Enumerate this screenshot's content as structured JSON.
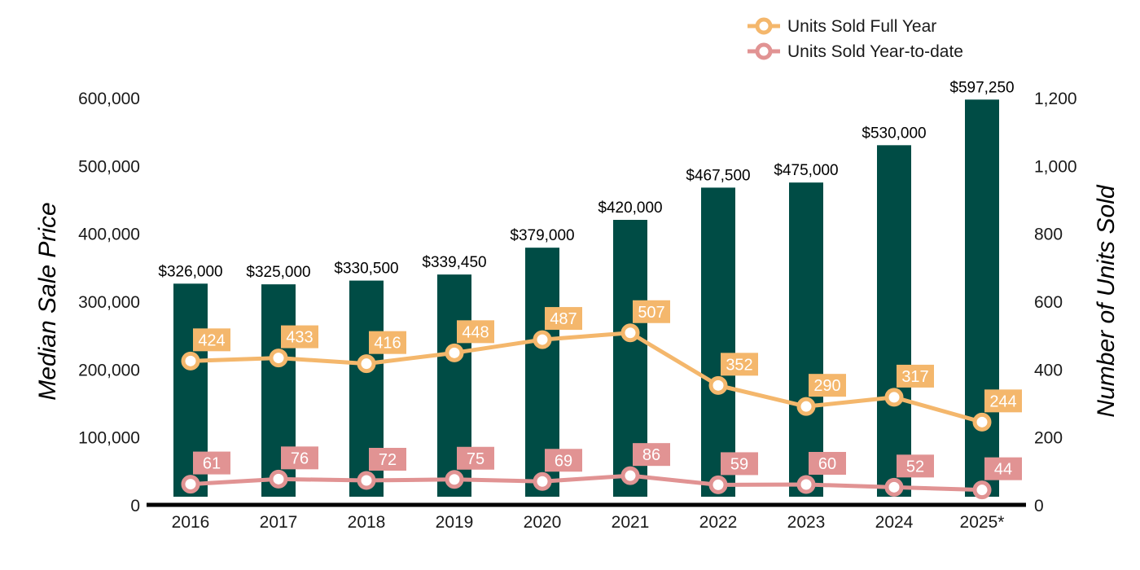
{
  "colors": {
    "bar": "#004c45",
    "full_year": "#f4b76c",
    "ytd": "#e19393",
    "baseline": "#000000"
  },
  "legend": {
    "full_year": "Units Sold Full Year",
    "ytd": "Units Sold Year-to-date"
  },
  "chart_data": {
    "type": "bar",
    "categories": [
      "2016",
      "2017",
      "2018",
      "2019",
      "2020",
      "2021",
      "2022",
      "2023",
      "2024",
      "2025*"
    ],
    "y_left": {
      "label": "Median Sale Price",
      "range": [
        0,
        600000
      ],
      "ticks": [
        "0",
        "100,000",
        "200,000",
        "300,000",
        "400,000",
        "500,000",
        "600,000"
      ]
    },
    "y_right": {
      "label": "Number of Units Sold",
      "range": [
        0,
        1200
      ],
      "ticks": [
        "0",
        "200",
        "400",
        "600",
        "800",
        "1,000",
        "1,200"
      ]
    },
    "bars": {
      "values": [
        326000,
        325000,
        330500,
        339450,
        379000,
        420000,
        467500,
        475000,
        530000,
        597250
      ],
      "labels": [
        "$326,000",
        "$325,000",
        "$330,500",
        "$339,450",
        "$379,000",
        "$420,000",
        "$467,500",
        "$475,000",
        "$530,000",
        "$597,250"
      ]
    },
    "series": [
      {
        "name": "Units Sold Full Year",
        "type": "line",
        "axis": "right",
        "values": [
          424,
          433,
          416,
          448,
          487,
          507,
          352,
          290,
          317,
          244
        ]
      },
      {
        "name": "Units Sold Year-to-date",
        "type": "line",
        "axis": "right",
        "values": [
          61,
          76,
          72,
          75,
          69,
          86,
          59,
          60,
          52,
          44
        ]
      }
    ],
    "legend_position": "top-right",
    "grid": false
  }
}
